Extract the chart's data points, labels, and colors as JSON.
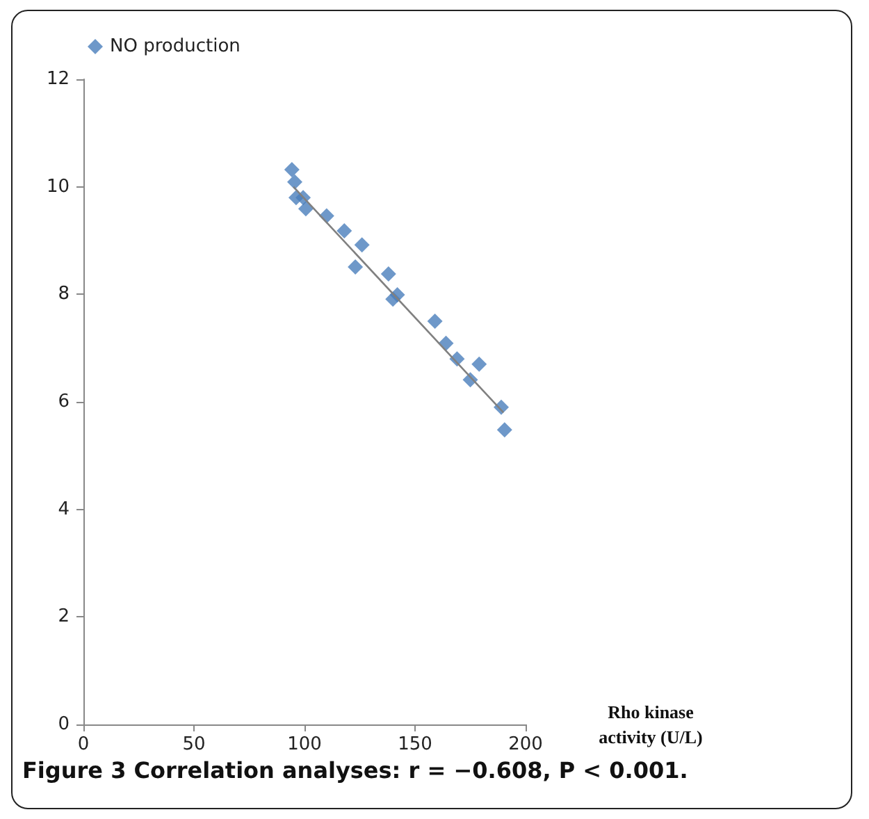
{
  "chart_data": {
    "type": "scatter",
    "xlabel": "Rho kinase activity (U/L)",
    "annotations": [
      "Figure 3 Correlation analyses: r = −0.608, P < 0.001."
    ],
    "xlim": [
      0,
      200
    ],
    "xticks": [
      0,
      50,
      100,
      150,
      200
    ],
    "ylim": [
      0,
      12
    ],
    "yticks": [
      0,
      2,
      4,
      6,
      8,
      10,
      12
    ],
    "grid": false,
    "legend": "top left",
    "marker": "diamond",
    "series": [
      {
        "name": "NO production",
        "color": "#4a7ebb",
        "x": [
          94.3,
          95.6,
          96.2,
          99.4,
          100.6,
          110,
          118,
          126,
          123,
          138,
          140,
          142,
          159,
          164,
          169,
          179,
          175,
          189,
          190.5
        ],
        "values": [
          10.32,
          10.09,
          9.8,
          9.8,
          9.59,
          9.46,
          9.18,
          8.92,
          8.51,
          8.38,
          7.91,
          7.99,
          7.5,
          7.09,
          6.8,
          6.7,
          6.41,
          5.9,
          5.48
        ]
      },
      {
        "type": "line",
        "marker": "none",
        "color": "#808080",
        "x": [
          95,
          190
        ],
        "values": [
          10.0,
          5.8
        ]
      }
    ]
  }
}
